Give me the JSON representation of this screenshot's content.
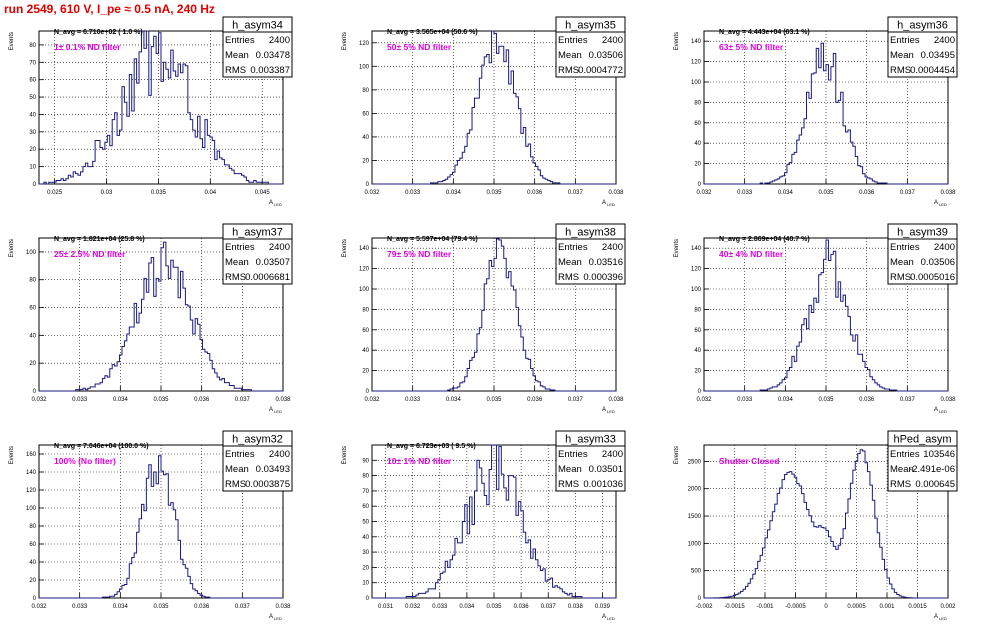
{
  "run_title": "run 2549,   610 V, I_pe ≈ 0.5 nA, 240 Hz",
  "colors": {
    "line": "#1a1a80",
    "filter_label": "#e000e0",
    "title": "#e00000"
  },
  "chart_data": [
    {
      "type": "bar",
      "name": "h_asym34",
      "navg": "N_avg = 6.710e+02 ( 1.0 %)",
      "filter": "1± 0.1% ND filter",
      "stats": [
        {
          "label": "Entries",
          "value": "2400"
        },
        {
          "label": "Mean",
          "value": "0.03478"
        },
        {
          "label": "RMS",
          "value": "0.003387"
        }
      ],
      "xlabel": "A",
      "xlabel_sub": "LED",
      "ylabel": "Events",
      "xlim": [
        0.0235,
        0.047
      ],
      "ylim": [
        0,
        88
      ],
      "xticks": [
        "0.025",
        "0.03",
        "0.035",
        "0.04",
        "0.045"
      ],
      "xtick_values": [
        0.025,
        0.03,
        0.035,
        0.04,
        0.045
      ],
      "yticks": [
        0,
        10,
        20,
        30,
        40,
        50,
        60,
        70,
        80
      ],
      "mean": 0.03478,
      "rms": 0.003387,
      "peak": 75,
      "total": 2400,
      "noise": 0.35
    },
    {
      "type": "bar",
      "name": "h_asym35",
      "navg": "N_avg = 3.565e+04 (50.6 %)",
      "filter": "50± 5% ND filter",
      "stats": [
        {
          "label": "Entries",
          "value": "2400"
        },
        {
          "label": "Mean",
          "value": "0.03506"
        },
        {
          "label": "RMS",
          "value": "0.0004772"
        }
      ],
      "xlabel": "A",
      "xlabel_sub": "LED",
      "ylabel": "Events",
      "xlim": [
        0.032,
        0.038
      ],
      "ylim": [
        0,
        130
      ],
      "xticks": [
        "0.032",
        "0.033",
        "0.034",
        "0.035",
        "0.036",
        "0.037",
        "0.038"
      ],
      "xtick_values": [
        0.032,
        0.033,
        0.034,
        0.035,
        0.036,
        0.037,
        0.038
      ],
      "yticks": [
        0,
        20,
        40,
        60,
        80,
        100,
        120
      ],
      "mean": 0.03506,
      "rms": 0.0004772,
      "peak": 120,
      "total": 2400,
      "noise": 0.15
    },
    {
      "type": "bar",
      "name": "h_asym36",
      "navg": "N_avg = 4.443e+04 (63.1 %)",
      "filter": "63± 5% ND filter",
      "stats": [
        {
          "label": "Entries",
          "value": "2400"
        },
        {
          "label": "Mean",
          "value": "0.03495"
        },
        {
          "label": "RMS",
          "value": "0.0004454"
        }
      ],
      "xlabel": "A",
      "xlabel_sub": "LED",
      "ylabel": "Events",
      "xlim": [
        0.032,
        0.038
      ],
      "ylim": [
        0,
        150
      ],
      "xticks": [
        "0.032",
        "0.033",
        "0.034",
        "0.035",
        "0.036",
        "0.037",
        "0.038"
      ],
      "xtick_values": [
        0.032,
        0.033,
        0.034,
        0.035,
        0.036,
        0.037,
        0.038
      ],
      "yticks": [
        0,
        20,
        40,
        60,
        80,
        100,
        120,
        140
      ],
      "mean": 0.03495,
      "rms": 0.0004454,
      "peak": 128,
      "total": 2400,
      "noise": 0.18
    },
    {
      "type": "bar",
      "name": "h_asym37",
      "navg": "N_avg = 1.821e+04 (25.8 %)",
      "filter": "25± 2.5% ND filter",
      "stats": [
        {
          "label": "Entries",
          "value": "2400"
        },
        {
          "label": "Mean",
          "value": "0.03507"
        },
        {
          "label": "RMS",
          "value": "0.0006681"
        }
      ],
      "xlabel": "A",
      "xlabel_sub": "LED",
      "ylabel": "Events",
      "xlim": [
        0.032,
        0.038
      ],
      "ylim": [
        0,
        110
      ],
      "xticks": [
        "0.032",
        "0.033",
        "0.034",
        "0.035",
        "0.036",
        "0.037",
        "0.038"
      ],
      "xtick_values": [
        0.032,
        0.033,
        0.034,
        0.035,
        0.036,
        0.037,
        0.038
      ],
      "yticks": [
        0,
        20,
        40,
        60,
        80,
        100
      ],
      "mean": 0.03507,
      "rms": 0.0006681,
      "peak": 90,
      "total": 2400,
      "noise": 0.2
    },
    {
      "type": "bar",
      "name": "h_asym38",
      "navg": "N_avg = 5.597e+04 (79.4 %)",
      "filter": "79± 5% ND filter",
      "stats": [
        {
          "label": "Entries",
          "value": "2400"
        },
        {
          "label": "Mean",
          "value": "0.03516"
        },
        {
          "label": "RMS",
          "value": "0.000396"
        }
      ],
      "xlabel": "A",
      "xlabel_sub": "LED",
      "ylabel": "Events",
      "xlim": [
        0.032,
        0.038
      ],
      "ylim": [
        0,
        150
      ],
      "xticks": [
        "0.032",
        "0.033",
        "0.034",
        "0.035",
        "0.036",
        "0.037",
        "0.038"
      ],
      "xtick_values": [
        0.032,
        0.033,
        0.034,
        0.035,
        0.036,
        0.037,
        0.038
      ],
      "yticks": [
        0,
        20,
        40,
        60,
        80,
        100,
        120,
        140
      ],
      "mean": 0.03516,
      "rms": 0.000396,
      "peak": 140,
      "total": 2400,
      "noise": 0.15
    },
    {
      "type": "bar",
      "name": "h_asym39",
      "navg": "N_avg = 2.869e+04 (40.7 %)",
      "filter": "40± 4% ND filter",
      "stats": [
        {
          "label": "Entries",
          "value": "2400"
        },
        {
          "label": "Mean",
          "value": "0.03506"
        },
        {
          "label": "RMS",
          "value": "0.0005016"
        }
      ],
      "xlabel": "A",
      "xlabel_sub": "LED",
      "ylabel": "Events",
      "xlim": [
        0.032,
        0.038
      ],
      "ylim": [
        0,
        150
      ],
      "xticks": [
        "0.032",
        "0.033",
        "0.034",
        "0.035",
        "0.036",
        "0.037",
        "0.038"
      ],
      "xtick_values": [
        0.032,
        0.033,
        0.034,
        0.035,
        0.036,
        0.037,
        0.038
      ],
      "yticks": [
        0,
        20,
        40,
        60,
        80,
        100,
        120,
        140
      ],
      "mean": 0.03506,
      "rms": 0.0005016,
      "peak": 125,
      "total": 2400,
      "noise": 0.2
    },
    {
      "type": "bar",
      "name": "h_asym32",
      "navg": "N_avg = 7.046e+04 (100.0 %)",
      "filter": "100% (No filter)",
      "stats": [
        {
          "label": "Entries",
          "value": "2400"
        },
        {
          "label": "Mean",
          "value": "0.03493"
        },
        {
          "label": "RMS",
          "value": "0.0003875"
        }
      ],
      "xlabel": "A",
      "xlabel_sub": "LED",
      "ylabel": "Events",
      "xlim": [
        0.032,
        0.038
      ],
      "ylim": [
        0,
        170
      ],
      "xticks": [
        "0.032",
        "0.033",
        "0.034",
        "0.035",
        "0.036",
        "0.037",
        "0.038"
      ],
      "xtick_values": [
        0.032,
        0.033,
        0.034,
        0.035,
        0.036,
        0.037,
        0.038
      ],
      "yticks": [
        0,
        20,
        40,
        60,
        80,
        100,
        120,
        140,
        160
      ],
      "mean": 0.03493,
      "rms": 0.0003875,
      "peak": 150,
      "total": 2400,
      "noise": 0.15
    },
    {
      "type": "bar",
      "name": "h_asym33",
      "navg": "N_avg = 6.723e+03 ( 9.5 %)",
      "filter": "10± 1% ND filter",
      "stats": [
        {
          "label": "Entries",
          "value": "2400"
        },
        {
          "label": "Mean",
          "value": "0.03501"
        },
        {
          "label": "RMS",
          "value": "0.001036"
        }
      ],
      "xlabel": "A",
      "xlabel_sub": "LED",
      "ylabel": "Events",
      "xlim": [
        0.0305,
        0.0395
      ],
      "ylim": [
        0,
        100
      ],
      "xticks": [
        "0.031",
        "0.032",
        "0.033",
        "0.034",
        "0.035",
        "0.036",
        "0.037",
        "0.038",
        "0.039"
      ],
      "xtick_values": [
        0.031,
        0.032,
        0.033,
        0.034,
        0.035,
        0.036,
        0.037,
        0.038,
        0.039
      ],
      "yticks": [
        0,
        10,
        20,
        30,
        40,
        50,
        60,
        70,
        80,
        90
      ],
      "mean": 0.03501,
      "rms": 0.001036,
      "peak": 82,
      "total": 2400,
      "noise": 0.28
    },
    {
      "type": "bar",
      "name": "hPed_asym",
      "navg": "",
      "filter": "Shutter Closed",
      "stats": [
        {
          "label": "Entries",
          "value": "103546"
        },
        {
          "label": "Mean",
          "value": "-2.491e-06"
        },
        {
          "label": "RMS",
          "value": "0.000645"
        }
      ],
      "xlabel": "A",
      "xlabel_sub": "LED",
      "ylabel": "Events",
      "xlim": [
        -0.002,
        0.002
      ],
      "ylim": [
        0,
        2800
      ],
      "xticks": [
        "-0.002",
        "-0.0015",
        "-0.001",
        "-0.0005",
        "0",
        "0.0005",
        "0.001",
        "0.0015",
        "0.002"
      ],
      "xtick_values": [
        -0.002,
        -0.0015,
        -0.001,
        -0.0005,
        0,
        0.0005,
        0.001,
        0.0015,
        0.002
      ],
      "yticks": [
        0,
        500,
        1000,
        1500,
        2000,
        2500
      ],
      "double_peak": [
        {
          "mean": -0.00058,
          "rms": 0.00033,
          "peak": 2280
        },
        {
          "mean": 0.00058,
          "rms": 0.00022,
          "peak": 2700
        }
      ],
      "valley": 1080,
      "total": 103546,
      "noise": 0.02
    }
  ]
}
